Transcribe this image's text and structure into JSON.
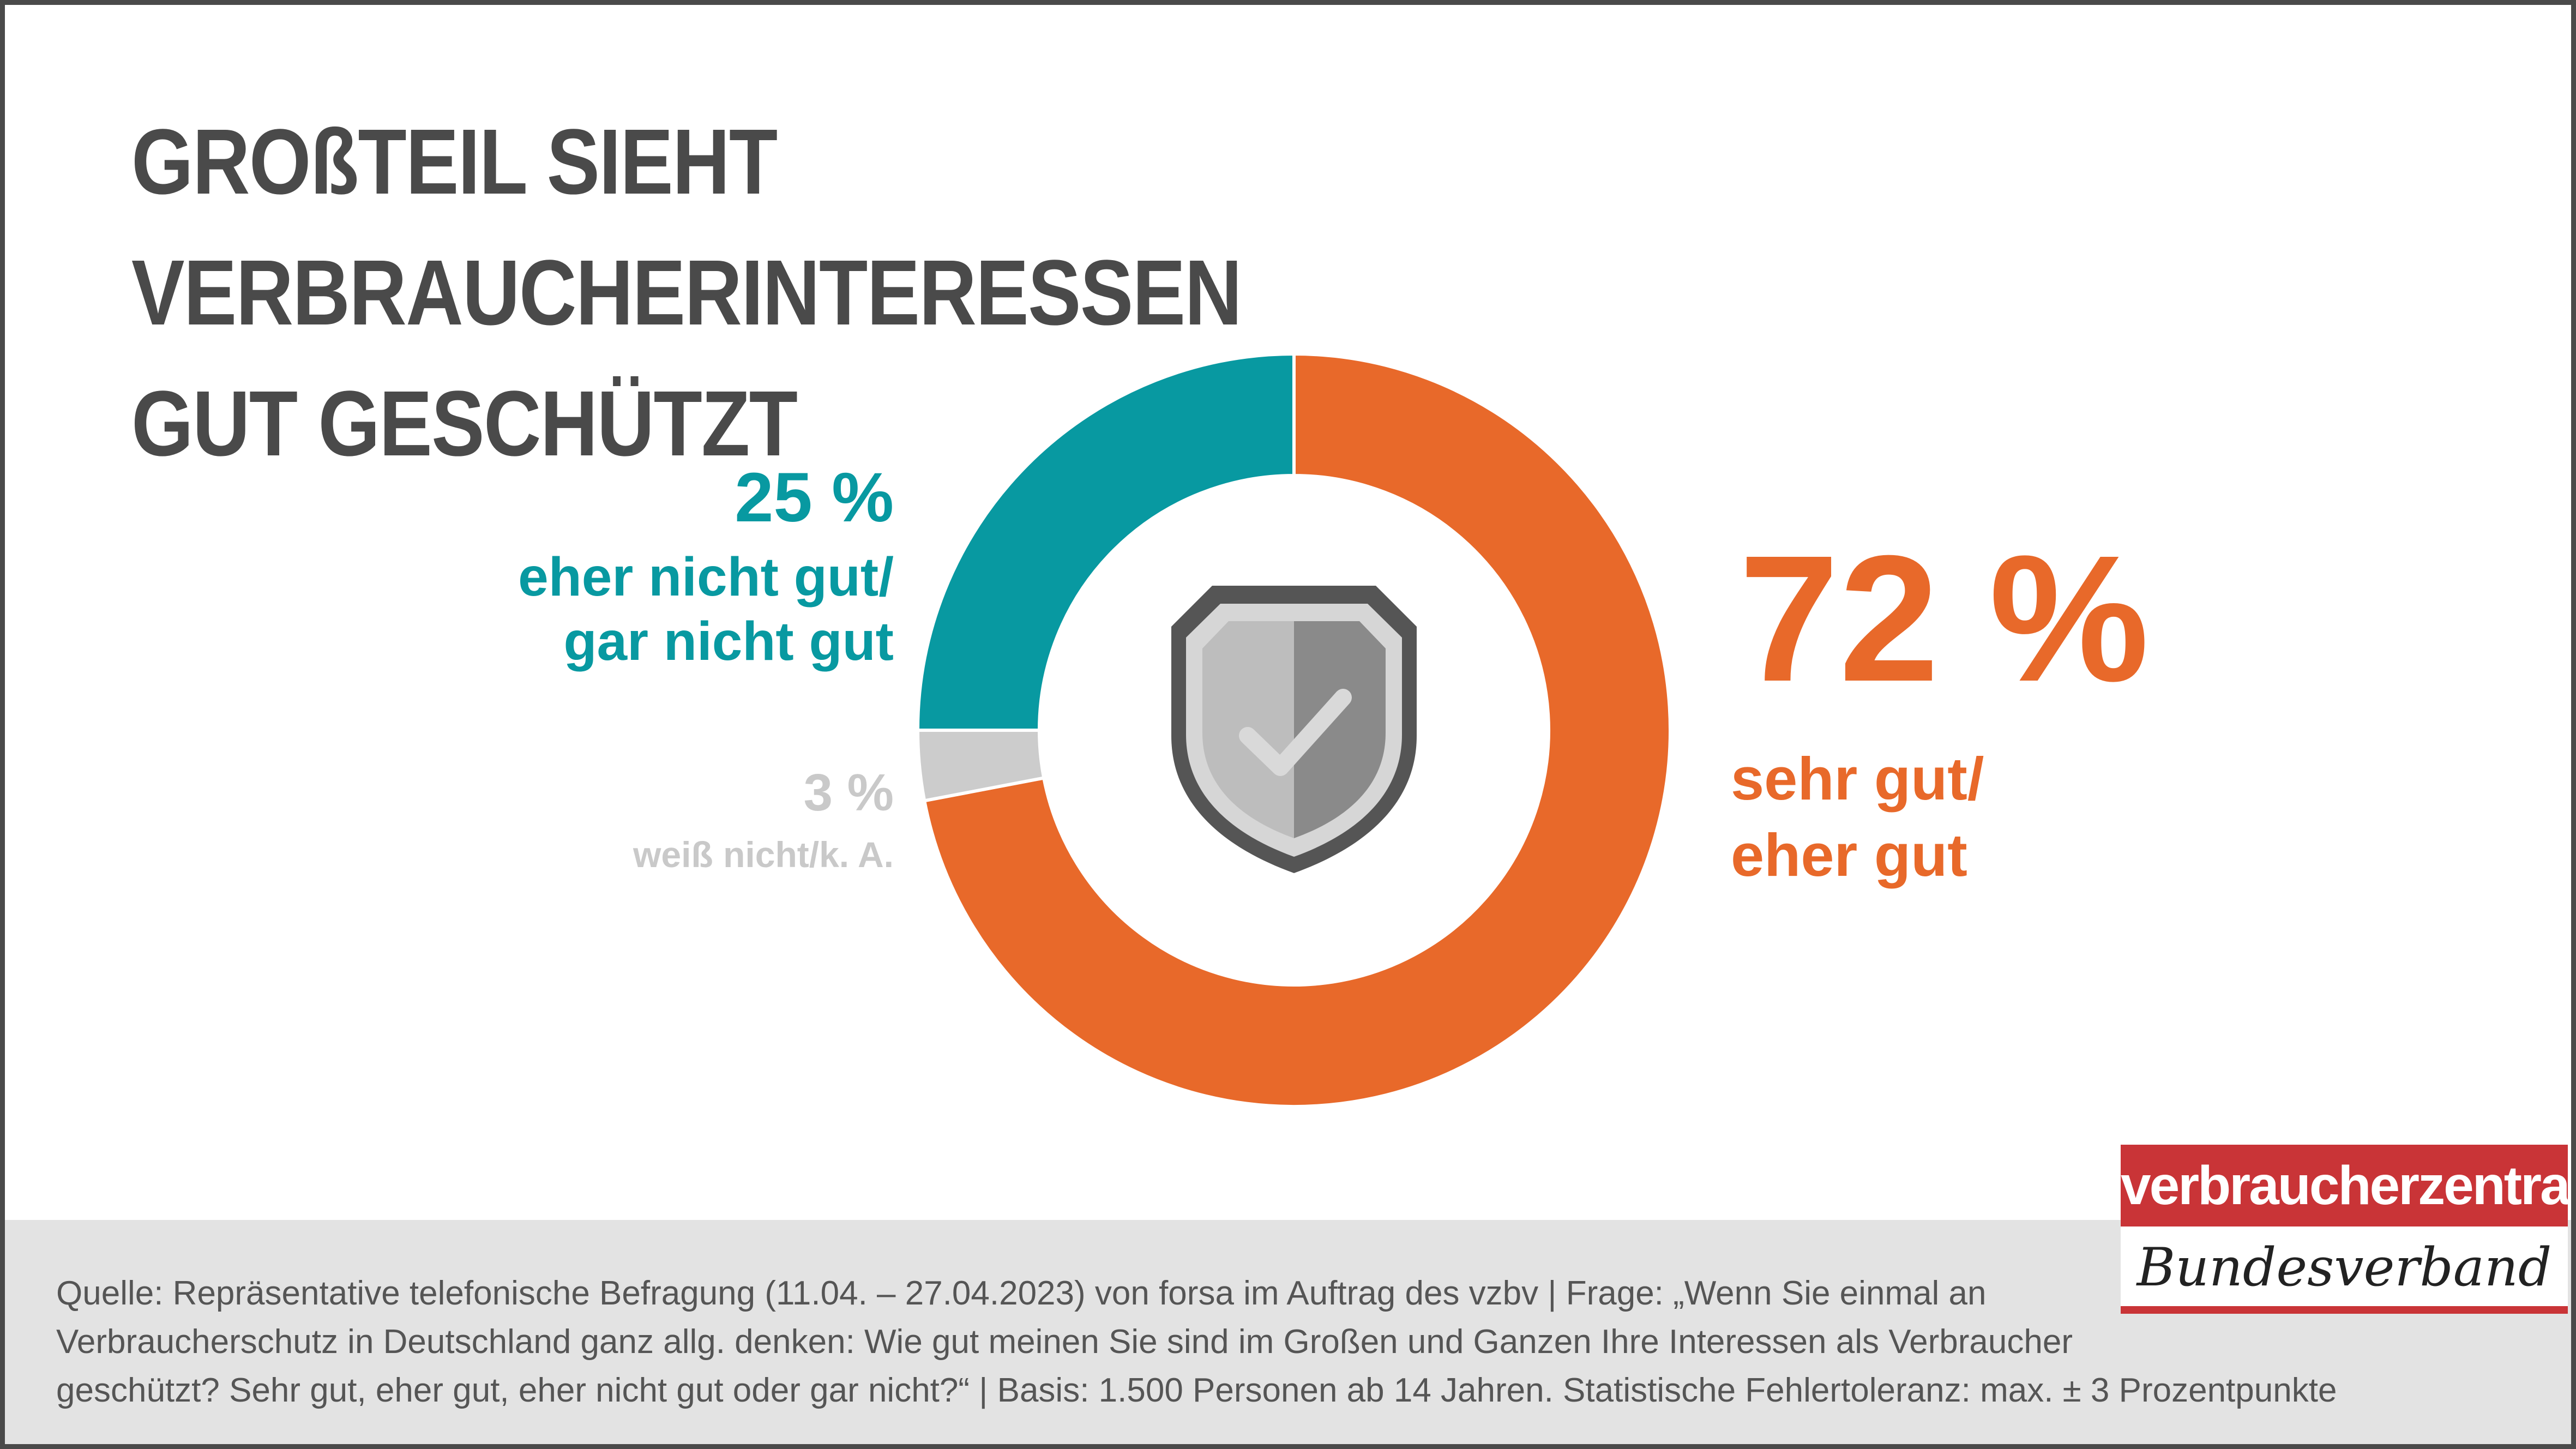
{
  "title": {
    "line1": "GROßTEIL SIEHT VERBRAUCHERINTERESSEN",
    "line2": "GUT GESCHÜTZT"
  },
  "chart_data": {
    "type": "pie",
    "variant": "donut",
    "title": "GROßTEIL SIEHT VERBRAUCHERINTERESSEN GUT GESCHÜTZT",
    "unit": "%",
    "slices": [
      {
        "key": "positive",
        "value": 72,
        "pct_label": "72 %",
        "label_line1": "sehr gut/",
        "label_line2": "eher gut",
        "color": "#e8692a"
      },
      {
        "key": "unknown",
        "value": 3,
        "pct_label": "3 %",
        "label_line1": "weiß nicht/k. A.",
        "color": "#cccccc"
      },
      {
        "key": "negative",
        "value": 25,
        "pct_label": "25 %",
        "label_line1": "eher nicht gut/",
        "label_line2": "gar nicht gut",
        "color": "#0899a1"
      }
    ],
    "center_icon": "shield-check-icon"
  },
  "footer": {
    "line1": "Quelle: Repräsentative telefonische Befragung (11.04. – 27.04.2023) von forsa im Auftrag des vzbv |  Frage: „Wenn Sie einmal an",
    "line2": "Verbraucherschutz in Deutschland ganz allg. denken: Wie gut meinen Sie sind im Großen und Ganzen Ihre Interessen als Verbraucher",
    "line3": "geschützt? Sehr gut, eher gut, eher nicht gut oder gar nicht?“ | Basis: 1.500 Personen ab 14 Jahren. Statistische Fehlertoleranz: max. ± 3 Prozentpunkte"
  },
  "logo": {
    "top_text": "verbraucherzentrale",
    "bottom_text": "Bundesverband"
  }
}
